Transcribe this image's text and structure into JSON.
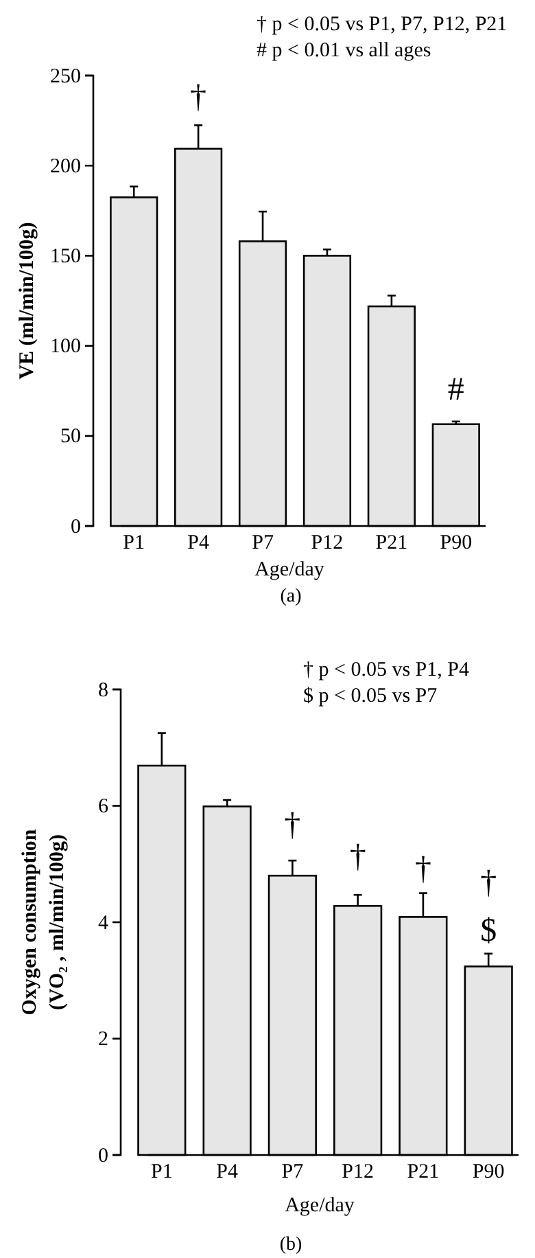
{
  "chart_data": [
    {
      "type": "bar",
      "xlabel": "Age/day",
      "ylabel": "VE (ml/min/100g)",
      "categories": [
        "P1",
        "P4",
        "P7",
        "P12",
        "P21",
        "P90"
      ],
      "color": "#e6e6e6",
      "values": [
        182.4,
        209.4,
        158,
        150,
        121.9,
        56.5
      ],
      "errors": [
        6,
        13,
        16.5,
        3.5,
        6,
        1.5
      ],
      "ylim": [
        0,
        250
      ],
      "yticks": [
        0,
        50,
        100,
        150,
        200,
        250
      ],
      "grid": false,
      "annotations": [
        "† p < 0.05 vs P1, P7, P12, P21",
        "#  p < 0.01 vs all ages",
        "(a)",
        "†",
        "#"
      ]
    },
    {
      "type": "bar",
      "xlabel": "Age/day",
      "ylabel": "Oxygen consumption\n(VO₂ , ml/min/100g)",
      "categories": [
        "P1",
        "P4",
        "P7",
        "P12",
        "P21",
        "P90"
      ],
      "color": "#e6e6e6",
      "values": [
        6.69,
        5.99,
        4.8,
        4.28,
        4.09,
        3.24
      ],
      "errors": [
        0.56,
        0.11,
        0.26,
        0.19,
        0.41,
        0.22
      ],
      "ylim": [
        0,
        8
      ],
      "yticks": [
        0,
        2,
        4,
        6,
        8
      ],
      "grid": false,
      "annotations": [
        "† p < 0.05 vs P1, P4",
        "$ p < 0.05 vs P7",
        "(b)",
        "†",
        "†",
        "†",
        "†",
        "$"
      ]
    }
  ]
}
